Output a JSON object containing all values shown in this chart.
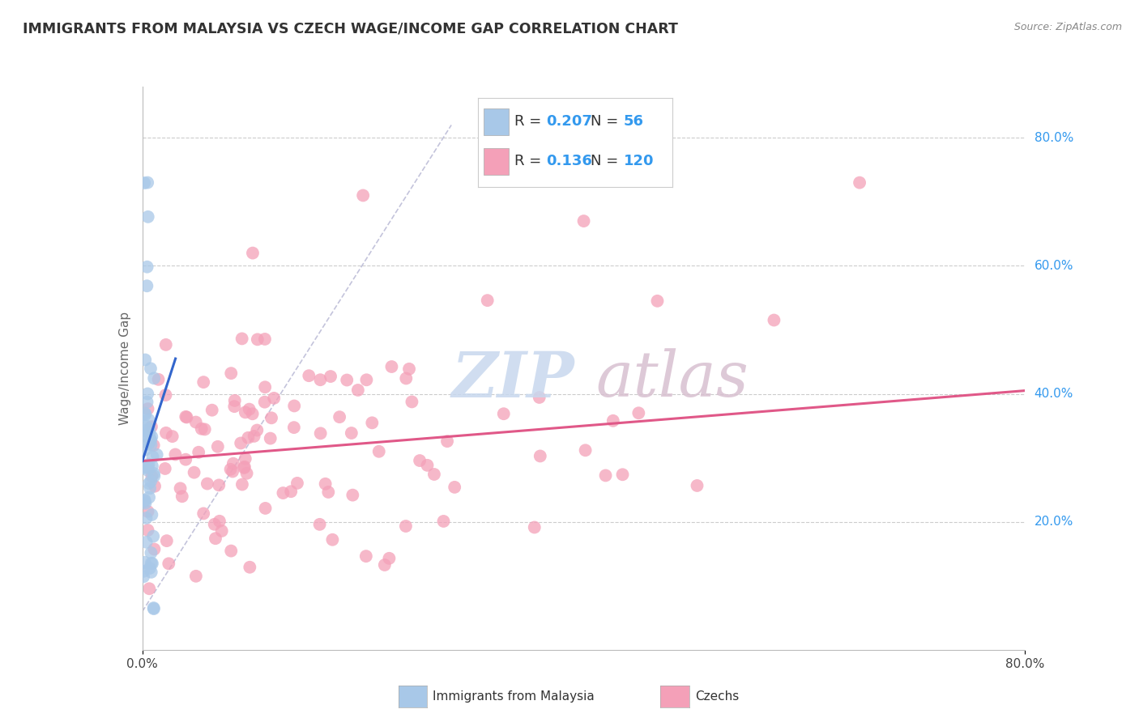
{
  "title": "IMMIGRANTS FROM MALAYSIA VS CZECH WAGE/INCOME GAP CORRELATION CHART",
  "source": "Source: ZipAtlas.com",
  "ylabel": "Wage/Income Gap",
  "y_tick_labels": [
    "80.0%",
    "60.0%",
    "40.0%",
    "20.0%"
  ],
  "y_tick_values": [
    0.8,
    0.6,
    0.4,
    0.2
  ],
  "x_range": [
    0.0,
    0.8
  ],
  "y_range": [
    0.0,
    0.88
  ],
  "blue_R": 0.207,
  "blue_N": 56,
  "pink_R": 0.136,
  "pink_N": 120,
  "blue_color": "#a8c8e8",
  "pink_color": "#f4a0b8",
  "blue_line_color": "#3366cc",
  "pink_line_color": "#e05888",
  "legend_label_blue": "Immigrants from Malaysia",
  "legend_label_pink": "Czechs",
  "r_n_color": "#3399ee",
  "grid_color": "#cccccc",
  "watermark_zip_color": "#c8d8ee",
  "watermark_atlas_color": "#d8c0d0",
  "blue_line_x": [
    0.0,
    0.03
  ],
  "blue_line_y": [
    0.295,
    0.455
  ],
  "pink_line_x": [
    0.0,
    0.8
  ],
  "pink_line_y": [
    0.295,
    0.405
  ],
  "ref_line_x": [
    0.0,
    0.28
  ],
  "ref_line_y": [
    0.06,
    0.82
  ]
}
